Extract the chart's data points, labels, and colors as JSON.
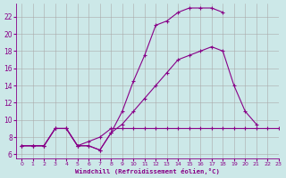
{
  "background_color": "#cce8e8",
  "grid_color": "#aaaaaa",
  "line_color": "#880088",
  "xlabel": "Windchill (Refroidissement éolien,°C)",
  "xlim": [
    -0.5,
    23
  ],
  "ylim": [
    5.5,
    23.5
  ],
  "yticks": [
    6,
    8,
    10,
    12,
    14,
    16,
    18,
    20,
    22
  ],
  "xticks": [
    0,
    1,
    2,
    3,
    4,
    5,
    6,
    7,
    8,
    9,
    10,
    11,
    12,
    13,
    14,
    15,
    16,
    17,
    18,
    19,
    20,
    21,
    22,
    23
  ],
  "line1_x": [
    0,
    1,
    2,
    3,
    4,
    5,
    6,
    7,
    8,
    9,
    10,
    11,
    12,
    13,
    14,
    15,
    16,
    17,
    18,
    19,
    20,
    21,
    22,
    23
  ],
  "line1_y": [
    7.0,
    7.0,
    7.0,
    9.0,
    9.0,
    7.0,
    7.0,
    6.5,
    8.5,
    11.0,
    14.5,
    17.5,
    21.0,
    21.5,
    22.5,
    23.0,
    23.0,
    23.0,
    22.5,
    null,
    null,
    null,
    null,
    null
  ],
  "line2_x": [
    0,
    1,
    2,
    3,
    4,
    5,
    6,
    7,
    8,
    9,
    10,
    11,
    12,
    13,
    14,
    15,
    16,
    17,
    18,
    19,
    20,
    21,
    22,
    23
  ],
  "line2_y": [
    7.0,
    7.0,
    7.0,
    9.0,
    9.0,
    7.0,
    7.0,
    6.5,
    8.5,
    9.5,
    11.0,
    12.5,
    14.0,
    15.5,
    17.0,
    17.5,
    18.0,
    18.5,
    18.0,
    14.0,
    11.0,
    9.5,
    null,
    null
  ],
  "line3_x": [
    0,
    1,
    2,
    3,
    4,
    5,
    6,
    7,
    8,
    9,
    10,
    11,
    12,
    13,
    14,
    15,
    16,
    17,
    18,
    19,
    20,
    21,
    22,
    23
  ],
  "line3_y": [
    7.0,
    7.0,
    7.0,
    9.0,
    9.0,
    7.0,
    7.5,
    8.0,
    9.0,
    9.0,
    9.0,
    9.0,
    9.0,
    9.0,
    9.0,
    9.0,
    9.0,
    9.0,
    9.0,
    9.0,
    9.0,
    9.0,
    9.0,
    9.0
  ]
}
